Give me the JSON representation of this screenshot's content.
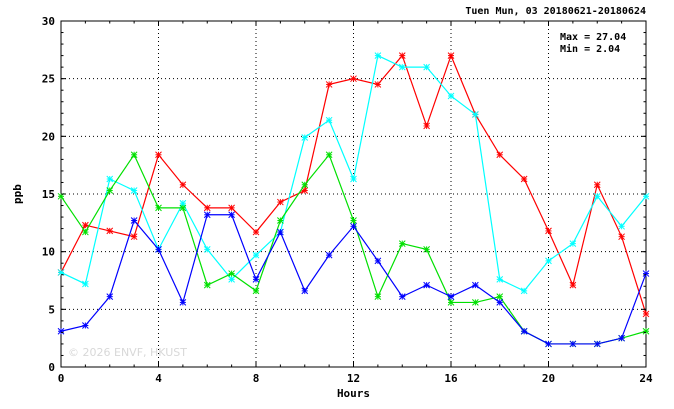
{
  "chart_data": {
    "type": "line",
    "title": "Tuen Mun, 03 20180621-20180624",
    "xlabel": "Hours",
    "ylabel": "ppb",
    "xlim": [
      0,
      24
    ],
    "ylim": [
      0,
      30
    ],
    "xticks": [
      "0",
      "4",
      "8",
      "12",
      "16",
      "20",
      "24"
    ],
    "yticks": [
      "0",
      "5",
      "10",
      "15",
      "20",
      "25",
      "30"
    ],
    "grid": true,
    "max_label": "Max = 27.04",
    "min_label": "Min =  2.04",
    "watermark": "© 2026 ENVF, HKUST",
    "x": [
      0,
      1,
      2,
      3,
      4,
      5,
      6,
      7,
      8,
      9,
      10,
      11,
      12,
      13,
      14,
      15,
      16,
      17,
      18,
      19,
      20,
      21,
      22,
      23,
      24
    ],
    "series": [
      {
        "color": "#ff0000",
        "values": [
          8.2,
          12.3,
          11.8,
          11.3,
          18.4,
          15.8,
          13.8,
          13.8,
          11.7,
          14.3,
          15.3,
          24.5,
          25.0,
          24.5,
          27.0,
          20.9,
          27.0,
          21.9,
          18.4,
          16.3,
          11.8,
          7.1,
          15.8,
          11.3,
          4.6
        ]
      },
      {
        "color": "#00ffff",
        "values": [
          8.2,
          7.2,
          16.3,
          15.3,
          10.2,
          14.2,
          10.2,
          7.6,
          9.7,
          11.7,
          19.9,
          21.4,
          16.3,
          27.0,
          26.0,
          26.0,
          23.5,
          21.9,
          7.6,
          6.6,
          9.2,
          10.7,
          14.8,
          12.2,
          14.8
        ]
      },
      {
        "color": "#00e000",
        "values": [
          14.8,
          11.7,
          15.3,
          18.4,
          13.8,
          13.8,
          7.1,
          8.1,
          6.6,
          12.7,
          15.8,
          18.4,
          12.7,
          6.1,
          10.7,
          10.2,
          5.6,
          5.6,
          6.1,
          3.1,
          2.0,
          2.0,
          2.0,
          2.5,
          3.1
        ]
      },
      {
        "color": "#0000ff",
        "values": [
          3.1,
          3.6,
          6.1,
          12.7,
          10.2,
          5.6,
          13.2,
          13.2,
          7.6,
          11.7,
          6.6,
          9.7,
          12.2,
          9.2,
          6.1,
          7.1,
          6.1,
          7.1,
          5.6,
          3.1,
          2.0,
          2.0,
          2.0,
          2.5,
          8.1
        ]
      }
    ]
  }
}
